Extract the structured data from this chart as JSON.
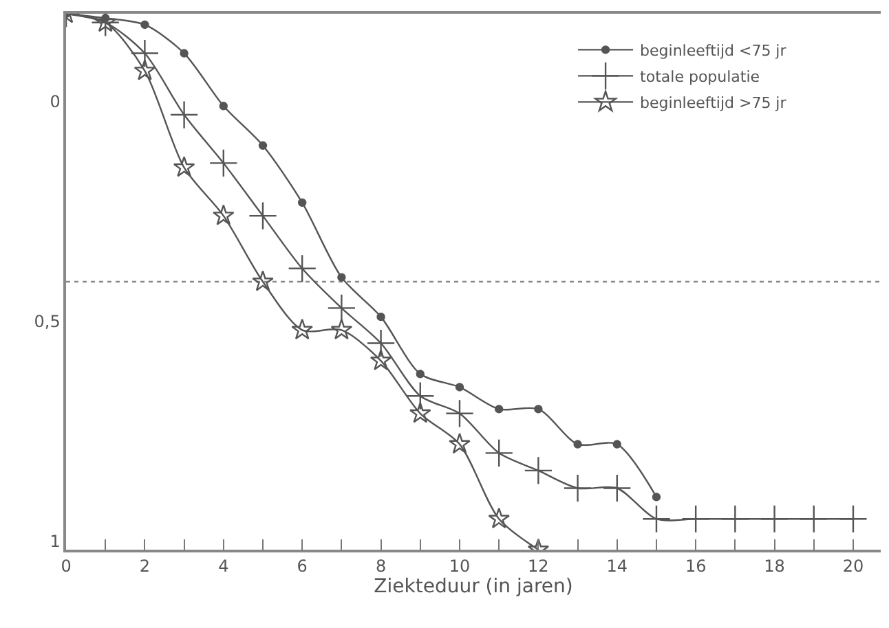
{
  "chart_data": {
    "type": "line",
    "xlabel": "Ziekteduur (in jaren)",
    "x": [
      0,
      1,
      2,
      3,
      4,
      5,
      6,
      7,
      8,
      9,
      10,
      11,
      12,
      13,
      14,
      15,
      16,
      17,
      18,
      19,
      20
    ],
    "series": [
      {
        "name": "beginleeftijd <75 jr",
        "color": "#555555",
        "marker": "circle",
        "values": [
          -0.2,
          -0.19,
          -0.175,
          -0.11,
          0.01,
          0.1,
          0.23,
          0.4,
          0.49,
          0.62,
          0.65,
          0.7,
          0.7,
          0.78,
          0.78,
          0.9,
          null,
          null,
          null,
          null,
          null
        ]
      },
      {
        "name": "totale populatie",
        "color": "#555555",
        "marker": "cross",
        "values": [
          -0.2,
          -0.18,
          -0.11,
          0.03,
          0.14,
          0.26,
          0.38,
          0.47,
          0.55,
          0.67,
          0.71,
          0.8,
          0.84,
          0.88,
          0.88,
          0.95,
          0.95,
          0.95,
          0.95,
          0.95,
          0.95
        ]
      },
      {
        "name": "beginleeftijd >75 jr",
        "color": "#555555",
        "marker": "star",
        "values": [
          -0.2,
          -0.18,
          -0.07,
          0.15,
          0.26,
          0.41,
          0.52,
          0.52,
          0.59,
          0.71,
          0.78,
          0.95,
          1.02,
          null,
          null,
          null,
          null,
          null,
          null,
          null,
          null
        ]
      }
    ],
    "xlim": [
      0,
      20.7
    ],
    "xticks": [
      0,
      {
        "value": 1,
        "label": null
      },
      2,
      {
        "value": 3,
        "label": null
      },
      4,
      {
        "value": 5,
        "label": null
      },
      6,
      {
        "value": 7,
        "label": null
      },
      8,
      {
        "value": 9,
        "label": null
      },
      10,
      {
        "value": 11,
        "label": null
      },
      12,
      {
        "value": 13,
        "label": null
      },
      14,
      {
        "value": 15,
        "label": null
      },
      16,
      {
        "value": 17,
        "label": null
      },
      18,
      {
        "value": 19,
        "label": null
      },
      20
    ],
    "ylim": [
      1.02,
      -0.2
    ],
    "yticks": [
      0,
      {
        "value": 0.5,
        "label": "0,5"
      },
      1
    ],
    "ref_lines": [
      {
        "axis": "y",
        "value": 0.41,
        "color": "#888888",
        "line_style": "dotted"
      }
    ],
    "legend": "top right",
    "grid": false
  }
}
